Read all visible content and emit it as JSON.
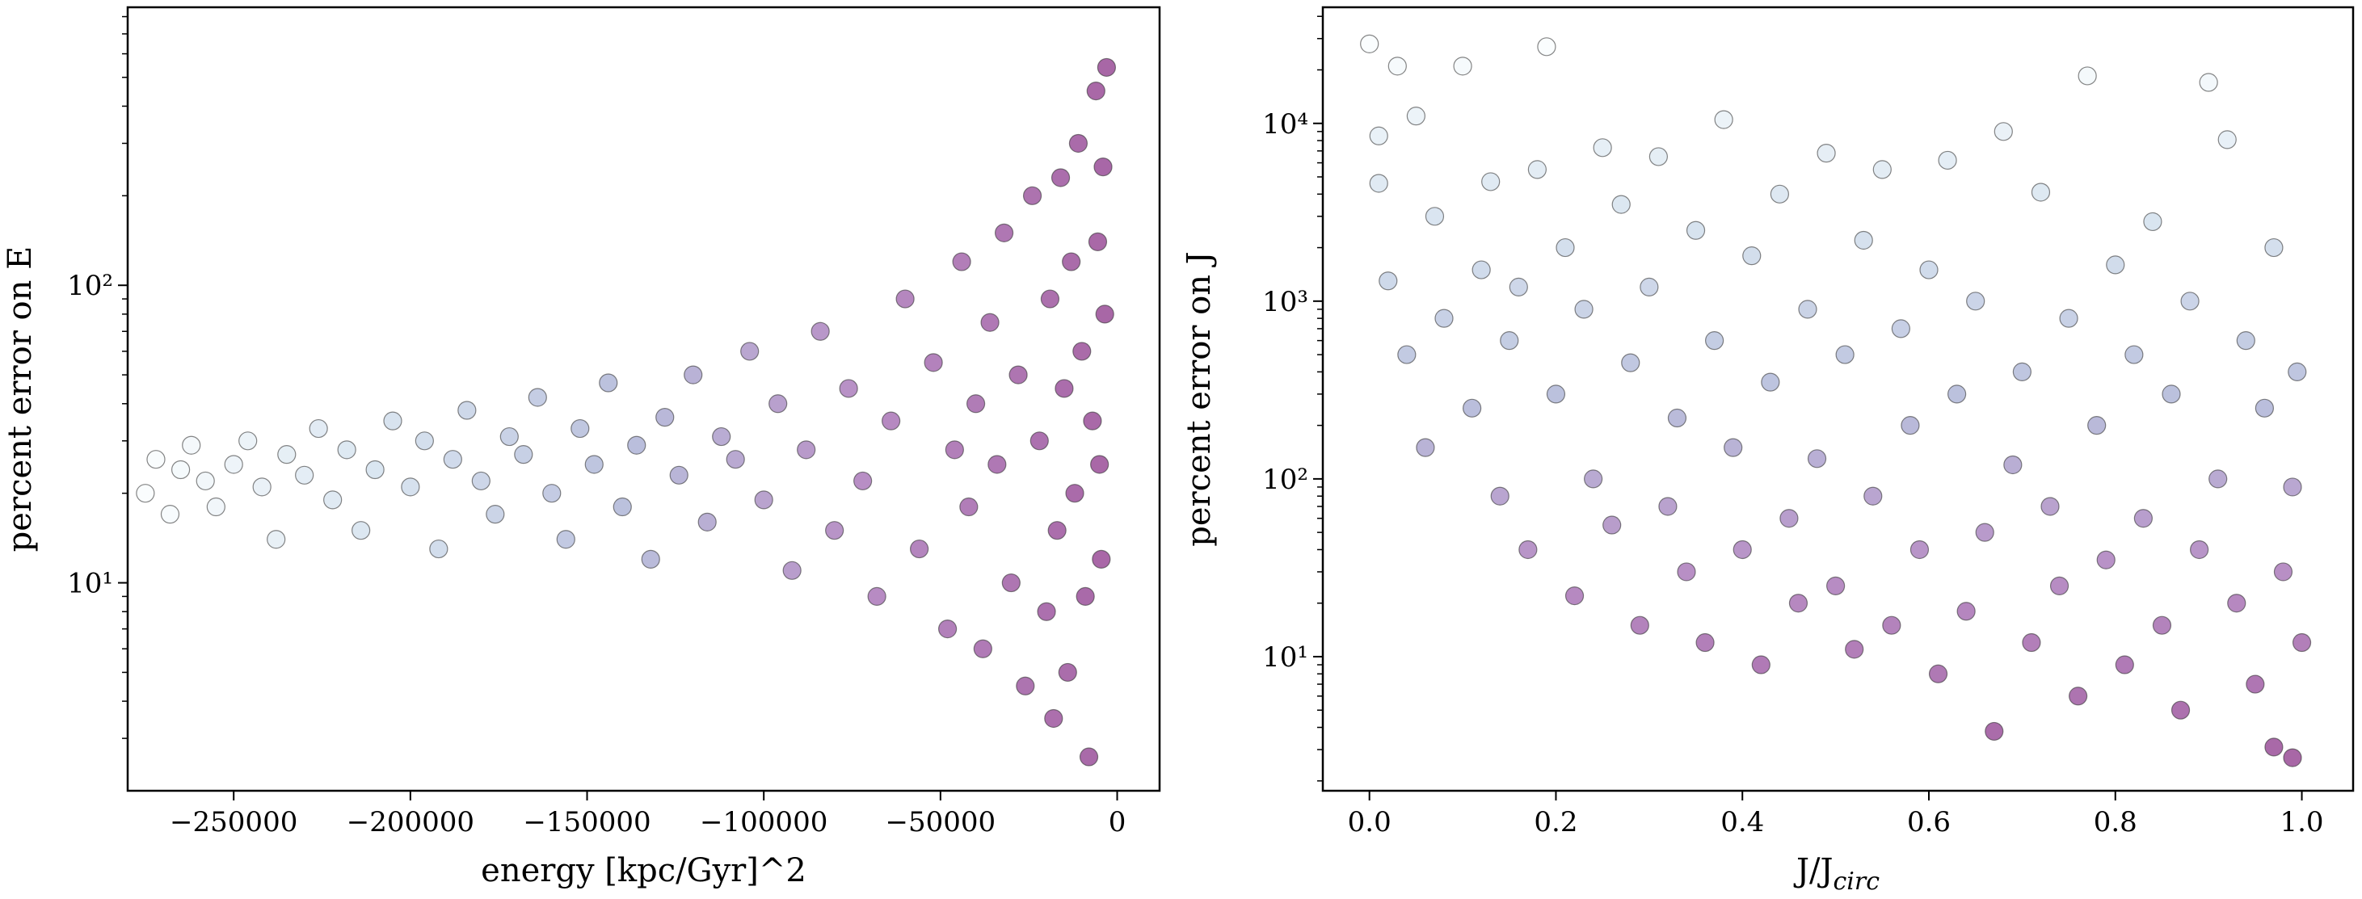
{
  "chart_data": [
    {
      "type": "scatter",
      "xlabel": "energy [kpc/Gyr]^2",
      "ylabel": "percent error on E",
      "ylog": true,
      "cmap": [
        "#f7fcfd",
        "#bfd3e6",
        "#8c96c6",
        "#88419d",
        "#6e016b"
      ],
      "color_by": "x",
      "color_reverse": false,
      "xlim": [
        -280000,
        12000
      ],
      "ylim": [
        2,
        860
      ],
      "xticks": [
        {
          "value": -250000,
          "label": "−250000"
        },
        {
          "value": -200000,
          "label": "−200000"
        },
        {
          "value": -150000,
          "label": "−150000"
        },
        {
          "value": -100000,
          "label": "−100000"
        },
        {
          "value": -50000,
          "label": "−50000"
        },
        0
      ],
      "yticks": [
        {
          "value": 10,
          "label": "10¹"
        },
        {
          "value": 100,
          "label": "10²"
        }
      ],
      "yticks_minor": [
        3,
        4,
        5,
        6,
        7,
        8,
        9,
        20,
        30,
        40,
        50,
        60,
        70,
        80,
        90,
        200,
        300,
        400,
        500,
        600,
        700,
        800
      ],
      "x": [
        -275000,
        -272000,
        -268000,
        -265000,
        -262000,
        -258000,
        -255000,
        -250000,
        -246000,
        -242000,
        -238000,
        -235000,
        -230000,
        -226000,
        -222000,
        -218000,
        -214000,
        -210000,
        -205000,
        -200000,
        -196000,
        -192000,
        -188000,
        -184000,
        -180000,
        -176000,
        -172000,
        -168000,
        -164000,
        -160000,
        -156000,
        -152000,
        -148000,
        -144000,
        -140000,
        -136000,
        -132000,
        -128000,
        -124000,
        -120000,
        -116000,
        -112000,
        -108000,
        -104000,
        -100000,
        -96000,
        -92000,
        -88000,
        -84000,
        -80000,
        -76000,
        -72000,
        -68000,
        -64000,
        -60000,
        -56000,
        -52000,
        -48000,
        -46000,
        -44000,
        -42000,
        -40000,
        -38000,
        -36000,
        -34000,
        -32000,
        -30000,
        -28000,
        -26000,
        -24000,
        -22000,
        -20000,
        -19000,
        -18000,
        -17000,
        -16000,
        -15000,
        -14000,
        -13000,
        -12000,
        -11000,
        -10000,
        -9000,
        -8000,
        -7000,
        -6000,
        -5500,
        -5000,
        -4500,
        -4000,
        -3500,
        -3000
      ],
      "y": [
        20,
        26,
        17,
        24,
        29,
        22,
        18,
        25,
        30,
        21,
        14,
        27,
        23,
        33,
        19,
        28,
        15,
        24,
        35,
        21,
        30,
        13,
        26,
        38,
        22,
        17,
        31,
        27,
        42,
        20,
        14,
        33,
        25,
        47,
        18,
        29,
        12,
        36,
        23,
        50,
        16,
        31,
        26,
        60,
        19,
        40,
        11,
        28,
        70,
        15,
        45,
        22,
        9,
        35,
        90,
        13,
        55,
        7,
        28,
        120,
        18,
        40,
        6,
        75,
        25,
        150,
        10,
        50,
        4.5,
        200,
        30,
        8,
        90,
        3.5,
        15,
        230,
        45,
        5,
        120,
        20,
        300,
        60,
        9,
        2.6,
        35,
        450,
        140,
        25,
        12,
        250,
        80,
        540
      ]
    },
    {
      "type": "scatter",
      "xlabel": {
        "main": "J/J",
        "sub": "circ"
      },
      "ylabel": "percent error on J",
      "ylog": true,
      "cmap": [
        "#f7fcfd",
        "#bfd3e6",
        "#8c96c6",
        "#88419d",
        "#6e016b"
      ],
      "color_by": "y",
      "color_reverse": true,
      "xlim": [
        -0.05,
        1.055
      ],
      "ylim": [
        1.76,
        45000
      ],
      "xticks": [
        {
          "value": 0,
          "label": "0.0"
        },
        0.2,
        0.4,
        0.6,
        0.8,
        {
          "value": 1,
          "label": "1.0"
        }
      ],
      "yticks": [
        {
          "value": 10,
          "label": "10¹"
        },
        {
          "value": 100,
          "label": "10²"
        },
        {
          "value": 1000,
          "label": "10³"
        },
        {
          "value": 10000,
          "label": "10⁴"
        }
      ],
      "yticks_minor": [
        2,
        3,
        4,
        5,
        6,
        7,
        8,
        9,
        20,
        30,
        40,
        50,
        60,
        70,
        80,
        90,
        200,
        300,
        400,
        500,
        600,
        700,
        800,
        900,
        2000,
        3000,
        4000,
        5000,
        6000,
        7000,
        8000,
        9000,
        20000,
        30000,
        40000
      ],
      "x": [
        0,
        0.01,
        0.01,
        0.02,
        0.03,
        0.04,
        0.05,
        0.06,
        0.07,
        0.08,
        0.1,
        0.11,
        0.12,
        0.13,
        0.14,
        0.15,
        0.16,
        0.17,
        0.18,
        0.19,
        0.2,
        0.21,
        0.22,
        0.23,
        0.24,
        0.25,
        0.26,
        0.27,
        0.28,
        0.29,
        0.3,
        0.31,
        0.32,
        0.33,
        0.34,
        0.35,
        0.36,
        0.37,
        0.38,
        0.39,
        0.4,
        0.41,
        0.42,
        0.43,
        0.44,
        0.45,
        0.46,
        0.47,
        0.48,
        0.49,
        0.5,
        0.51,
        0.52,
        0.53,
        0.54,
        0.55,
        0.56,
        0.57,
        0.58,
        0.59,
        0.6,
        0.61,
        0.62,
        0.63,
        0.64,
        0.65,
        0.66,
        0.67,
        0.68,
        0.69,
        0.7,
        0.71,
        0.72,
        0.73,
        0.74,
        0.75,
        0.76,
        0.77,
        0.78,
        0.79,
        0.8,
        0.81,
        0.82,
        0.83,
        0.84,
        0.85,
        0.86,
        0.87,
        0.88,
        0.89,
        0.9,
        0.91,
        0.92,
        0.93,
        0.94,
        0.95,
        0.96,
        0.97,
        0.98,
        0.99,
        0.995,
        1,
        0.97,
        0.99
      ],
      "y": [
        28000,
        8500,
        4600,
        1300,
        21000,
        500,
        11000,
        150,
        3000,
        800,
        21000,
        250,
        1500,
        4700,
        80,
        600,
        1200,
        40,
        5500,
        27000,
        300,
        2000,
        22,
        900,
        100,
        7300,
        55,
        3500,
        450,
        15,
        1200,
        6500,
        70,
        220,
        30,
        2500,
        12,
        600,
        10500,
        150,
        40,
        1800,
        9,
        350,
        4000,
        60,
        20,
        900,
        130,
        6800,
        25,
        500,
        11,
        2200,
        80,
        5500,
        15,
        700,
        200,
        40,
        1500,
        8,
        6200,
        300,
        18,
        1000,
        50,
        3.8,
        9000,
        120,
        400,
        12,
        4100,
        70,
        25,
        800,
        6,
        18500,
        200,
        35,
        1600,
        9,
        500,
        60,
        2800,
        15,
        300,
        5,
        1000,
        40,
        17000,
        100,
        8100,
        20,
        600,
        7,
        250,
        2000,
        30,
        2.7,
        400,
        12,
        3.1,
        90
      ]
    }
  ]
}
